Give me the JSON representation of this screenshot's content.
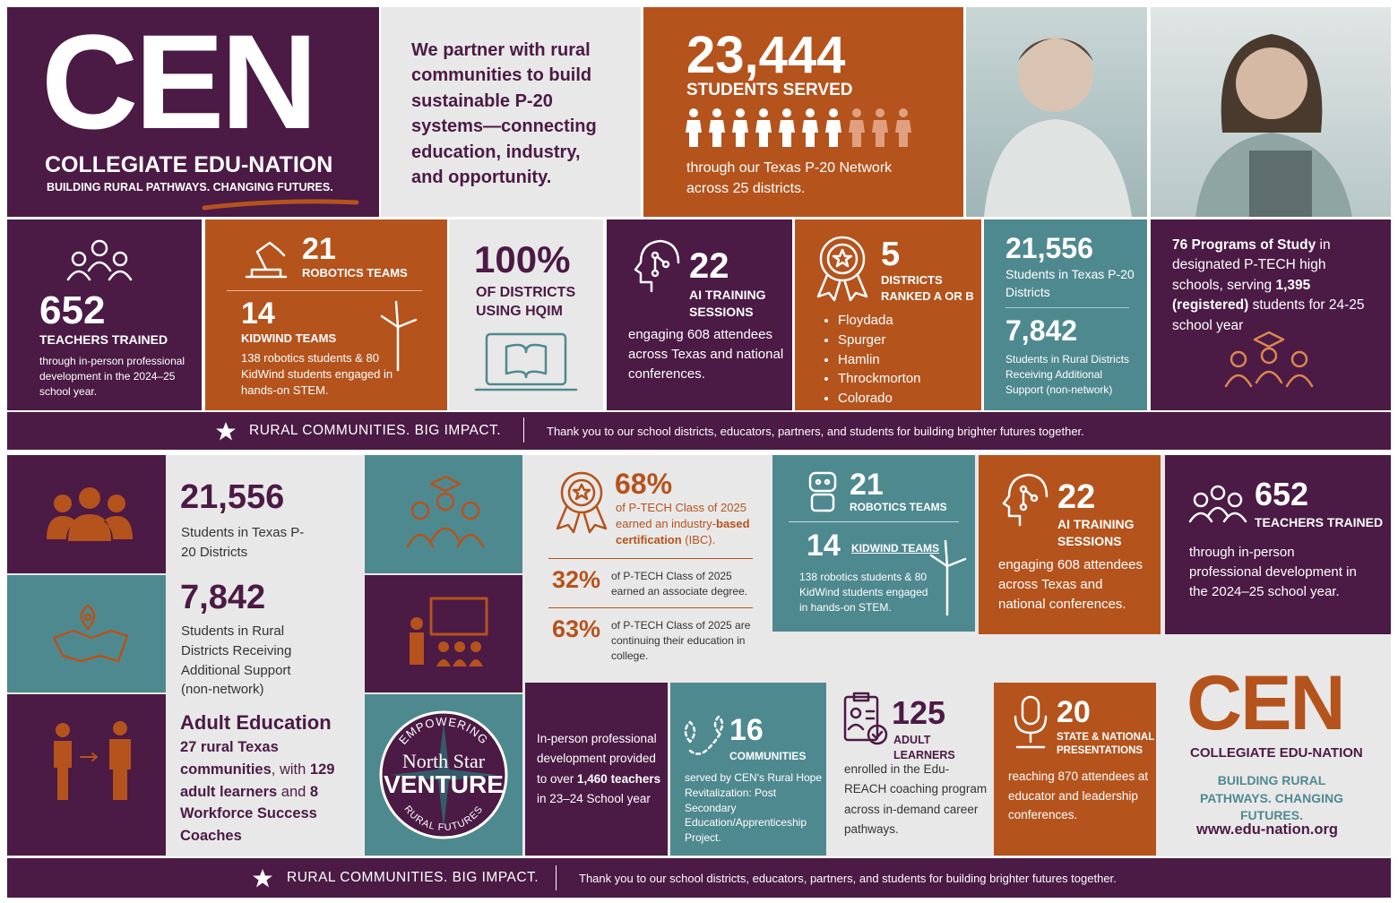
{
  "header": {
    "logo": "CEN",
    "name": "COLLEGIATE EDU-NATION",
    "tagline": "BUILDING RURAL PATHWAYS. CHANGING FUTURES."
  },
  "mission": "We partner with rural communities to build sustainable P-20 systems—connecting education, industry, and opportunity.",
  "students_served": {
    "value": "23,444",
    "label": "STUDENTS SERVED",
    "note": "through our Texas P-20 Network across 25 districts."
  },
  "top_stats": {
    "teachers": {
      "value": "652",
      "label": "TEACHERS TRAINED",
      "note": "through in-person professional development in the 2024–25 school year."
    },
    "robotics": {
      "value": "21",
      "label": "ROBOTICS TEAMS",
      "kidwind_value": "14",
      "kidwind_label": "KIDWIND TEAMS",
      "note": "138 robotics students & 80 KidWind students engaged in hands-on STEM."
    },
    "hqim": {
      "value": "100%",
      "label": "OF DISTRICTS USING HQIM"
    },
    "ai": {
      "value": "22",
      "label": "AI TRAINING SESSIONS",
      "note": "engaging 608 attendees across Texas and national conferences."
    },
    "ranked": {
      "value": "5",
      "label": "DISTRICTS RANKED A OR B",
      "districts": [
        "Floydada",
        "Spurger",
        "Hamlin",
        "Throckmorton",
        "Colorado"
      ]
    },
    "students": {
      "value": "21,556",
      "label": "Students in Texas P-20 Districts",
      "rural_value": "7,842",
      "rural_label": "Students in Rural Districts Receiving Additional Support (non-network)"
    },
    "ptech": {
      "parts": [
        "76 Programs of Study",
        " in designated P-TECH high schools, serving ",
        "1,395 (registered)",
        " students for 24-25 school year"
      ]
    }
  },
  "banner": {
    "slogan": "RURAL COMMUNITIES. BIG IMPACT.",
    "thanks": "Thank you to our school districts, educators, partners, and students for building brighter futures together."
  },
  "bottom": {
    "students": {
      "value": "21,556",
      "label": "Students in Texas P-20 Districts",
      "rural_value": "7,842",
      "rural_label": "Students in Rural Districts Receiving Additional Support (non-network)"
    },
    "adult_education": {
      "title": "Adult Education",
      "parts": [
        "27 rural Texas communities",
        ", with ",
        "129 adult learners",
        " and ",
        "8 Workforce Success Coaches"
      ]
    },
    "north_star": {
      "top": "EMPOWERING",
      "name": "North Star",
      "venture": "VENTURE",
      "bottom": "RURAL FUTURES"
    },
    "ptech_outcomes": {
      "ibc": {
        "value": "68%",
        "parts": [
          "of P-TECH Class of 2025 earned an industry-",
          "based certification",
          " (IBC)."
        ]
      },
      "associate": {
        "value": "32%",
        "label": "of P-TECH Class of 2025 earned an associate degree."
      },
      "college": {
        "value": "63%",
        "label": "of P-TECH Class of 2025 are continuing their education in college."
      }
    },
    "robotics": {
      "value": "21",
      "label": "ROBOTICS TEAMS",
      "kidwind_value": "14",
      "kidwind_label": "KIDWIND TEAMS",
      "note": "138 robotics students & 80 KidWind students engaged in hands-on STEM."
    },
    "ai": {
      "value": "22",
      "label": "AI TRAINING SESSIONS",
      "note": "engaging 608 attendees across Texas and national conferences."
    },
    "teachers": {
      "value": "652",
      "label": "TEACHERS TRAINED",
      "note": "through in-person professional development in the 2024–25 school year."
    },
    "professional_development": {
      "parts": [
        "In-person professional development provided to over ",
        "1,460 teachers",
        " in 23–24 School year"
      ]
    },
    "communities": {
      "value": "16",
      "label": "COMMUNITIES",
      "note": "served by CEN's Rural Hope Revitalization: Post Secondary Education/Apprenticeship Project."
    },
    "adult_learners": {
      "value": "125",
      "label": "ADULT LEARNERS",
      "note": "enrolled in the Edu-REACH coaching program across in-demand career pathways."
    },
    "presentations": {
      "value": "20",
      "label": "STATE & NATIONAL PRESENTATIONS",
      "note": "reaching 870 attendees at educator and leadership conferences."
    },
    "logo": {
      "logo": "CEN",
      "name": "COLLEGIATE EDU-NATION",
      "tagline": "BUILDING RURAL PATHWAYS. CHANGING FUTURES.",
      "url": "www.edu-nation.org"
    }
  },
  "footer": {
    "slogan": "RURAL COMMUNITIES. BIG IMPACT.",
    "thanks": "Thank you to our school districts, educators, partners, and students for building brighter futures together."
  }
}
